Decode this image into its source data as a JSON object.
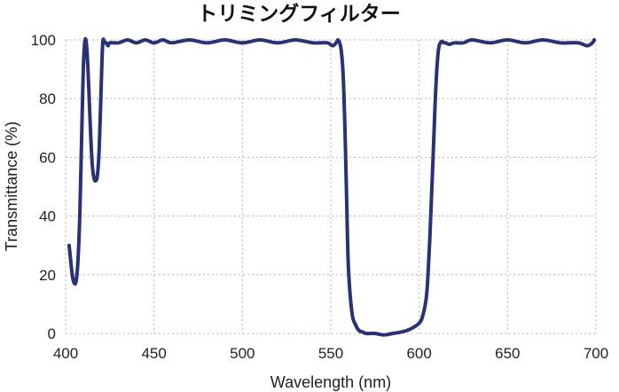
{
  "chart_data": {
    "type": "line",
    "title": "トリミングフィルター",
    "xlabel": "Wavelength (nm)",
    "ylabel": "Transmittance (%)",
    "xlim": [
      400,
      700
    ],
    "ylim": [
      0,
      100
    ],
    "x_ticks": [
      "400",
      "450",
      "500",
      "550",
      "600",
      "650",
      "700"
    ],
    "y_ticks": [
      "0",
      "20",
      "40",
      "60",
      "80",
      "100"
    ],
    "grid": true,
    "grid_style": "dotted",
    "line_color": "#283275",
    "series": [
      {
        "x": [
          402,
          403,
          404,
          405,
          406,
          407,
          408,
          409,
          410,
          411,
          412,
          413,
          414,
          415,
          416,
          417,
          418,
          419,
          420,
          421,
          422,
          423,
          424,
          425,
          430,
          435,
          440,
          445,
          450,
          455,
          460,
          470,
          480,
          490,
          500,
          510,
          520,
          530,
          540,
          548,
          551,
          553,
          554,
          555,
          556,
          557,
          558,
          559,
          560,
          562,
          564,
          566,
          568,
          570,
          575,
          580,
          585,
          590,
          595,
          600,
          602,
          604,
          605,
          606,
          607,
          608,
          609,
          610,
          611,
          612,
          613,
          614,
          615,
          617,
          620,
          625,
          630,
          640,
          650,
          660,
          670,
          680,
          690,
          695,
          698,
          699
        ],
        "y": [
          30,
          24,
          19,
          17,
          18,
          25,
          40,
          65,
          90,
          100,
          97,
          85,
          70,
          58,
          53,
          52,
          54,
          63,
          82,
          99,
          99,
          99,
          98,
          99,
          99,
          100,
          99,
          100,
          99,
          100,
          99,
          100,
          99,
          100,
          99,
          100,
          99,
          100,
          99,
          99,
          98,
          99,
          100,
          99,
          96,
          88,
          70,
          45,
          22,
          7,
          3,
          1,
          0.5,
          0,
          0,
          -0.5,
          0,
          0.5,
          1.5,
          3.5,
          6,
          12,
          20,
          32,
          47,
          62,
          78,
          90,
          97,
          99,
          99.5,
          99,
          99,
          98.5,
          99,
          99,
          100,
          99,
          100,
          99,
          100,
          99,
          99,
          98,
          99,
          100
        ]
      }
    ]
  }
}
